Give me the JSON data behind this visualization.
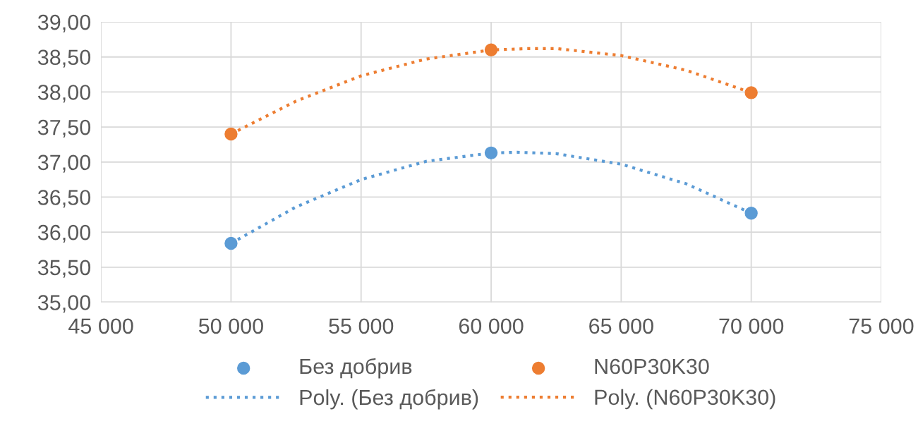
{
  "chart_data": {
    "type": "scatter",
    "xlim": [
      45000,
      75000
    ],
    "xticks": [
      {
        "value": 45000,
        "label": "45 000"
      },
      {
        "value": 50000,
        "label": "50 000"
      },
      {
        "value": 55000,
        "label": "55 000"
      },
      {
        "value": 60000,
        "label": "60 000"
      },
      {
        "value": 65000,
        "label": "65 000"
      },
      {
        "value": 70000,
        "label": "70 000"
      },
      {
        "value": 75000,
        "label": "75 000"
      }
    ],
    "ylim": [
      35,
      39
    ],
    "yticks": [
      {
        "value": 35,
        "label": "35,00"
      },
      {
        "value": 35.5,
        "label": "35,50"
      },
      {
        "value": 36,
        "label": "36,00"
      },
      {
        "value": 36.5,
        "label": "36,50"
      },
      {
        "value": 37,
        "label": "37,00"
      },
      {
        "value": 37.5,
        "label": "37,50"
      },
      {
        "value": 38,
        "label": "38,00"
      },
      {
        "value": 38.5,
        "label": "38,50"
      },
      {
        "value": 39,
        "label": "39,00"
      }
    ],
    "grid": true,
    "legend": "bottom",
    "series": [
      {
        "name": "Без добрив",
        "marker": "circle",
        "color": "#5b9bd5",
        "x": [
          50000,
          60000,
          70000
        ],
        "values": [
          35.84,
          37.13,
          36.27
        ]
      },
      {
        "name": "N60P30K30",
        "marker": "circle",
        "color": "#ed7d31",
        "x": [
          50000,
          60000,
          70000
        ],
        "values": [
          37.4,
          38.6,
          37.99
        ]
      },
      {
        "name": "Poly. (Без добрив)",
        "type": "line",
        "marker": "none",
        "line_style": "dotted",
        "color": "#5b9bd5",
        "x": [
          50000,
          52500,
          55000,
          57500,
          60000,
          61000,
          62500,
          65000,
          67500,
          70000
        ],
        "values": [
          35.84,
          36.36,
          36.75,
          37.01,
          37.13,
          37.14,
          37.12,
          36.97,
          36.69,
          36.27
        ]
      },
      {
        "name": "Poly. (N60P30K30)",
        "type": "line",
        "marker": "none",
        "line_style": "dotted",
        "color": "#ed7d31",
        "x": [
          50000,
          52500,
          55000,
          57500,
          60000,
          61500,
          62500,
          65000,
          67500,
          70000
        ],
        "values": [
          37.4,
          37.87,
          38.23,
          38.47,
          38.6,
          38.62,
          38.62,
          38.52,
          38.31,
          37.99
        ]
      }
    ]
  }
}
